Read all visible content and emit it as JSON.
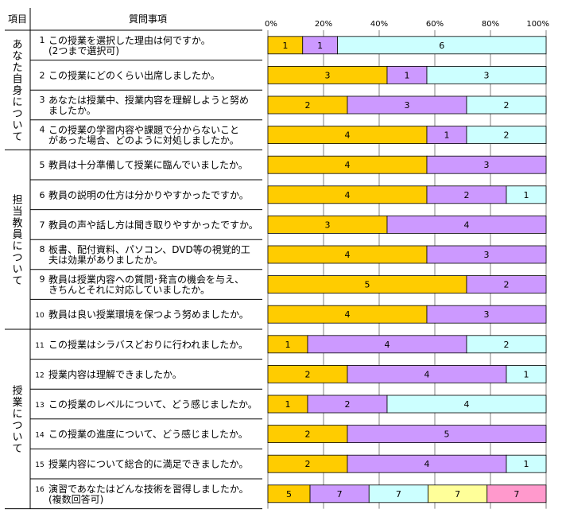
{
  "header": {
    "category": "項目",
    "question": "質問事項"
  },
  "categories": [
    {
      "label": "あなた自身について",
      "first": 0,
      "last": 3
    },
    {
      "label": "担当教員について",
      "first": 4,
      "last": 9
    },
    {
      "label": "授業について",
      "first": 10,
      "last": 15
    }
  ],
  "colors": {
    "s1": "#ffcc00",
    "s2": "#cc99ff",
    "s3": "#ccffff",
    "s4": "#ffff99",
    "s5": "#ff99cc",
    "grid": "#808080",
    "border": "#000000"
  },
  "chart_data": {
    "type": "bar",
    "orientation": "horizontal",
    "stacked": "percent",
    "xticks": [
      "0%",
      "20%",
      "40%",
      "60%",
      "80%",
      "100%"
    ],
    "xlim": [
      0,
      100
    ],
    "questions": [
      {
        "no": "1",
        "lines": [
          "この授業を選択した理由は何ですか。",
          "(2つまで選択可)"
        ],
        "values": [
          1,
          1,
          6
        ]
      },
      {
        "no": "2",
        "lines": [
          "この授業にどのくらい出席しましたか。"
        ],
        "values": [
          3,
          1,
          3
        ]
      },
      {
        "no": "3",
        "lines": [
          "あなたは授業中、授業内容を理解しようと努め",
          "ましたか。"
        ],
        "values": [
          2,
          3,
          2
        ]
      },
      {
        "no": "4",
        "lines": [
          "この授業の学習内容や課題で分からないこと",
          "があった場合、どのように対処しましたか。"
        ],
        "values": [
          4,
          1,
          2
        ]
      },
      {
        "no": "5",
        "lines": [
          "教員は十分準備して授業に臨んでいましたか。"
        ],
        "values": [
          4,
          3
        ]
      },
      {
        "no": "6",
        "lines": [
          "教員の説明の仕方は分かりやすかったですか。"
        ],
        "values": [
          4,
          2,
          1
        ]
      },
      {
        "no": "7",
        "lines": [
          "教員の声や話し方は聞き取りやすかったですか。"
        ],
        "values": [
          3,
          4
        ]
      },
      {
        "no": "8",
        "lines": [
          "板書、配付資料、パソコン、DVD等の視覚的工",
          "夫は効果がありましたか。"
        ],
        "values": [
          4,
          3
        ]
      },
      {
        "no": "9",
        "lines": [
          "教員は授業内容への質問･発言の機会を与え、",
          "きちんとそれに対応していましたか。"
        ],
        "values": [
          5,
          2
        ]
      },
      {
        "no": "10",
        "lines": [
          "教員は良い授業環境を保つよう努めましたか。"
        ],
        "values": [
          4,
          3
        ]
      },
      {
        "no": "11",
        "lines": [
          "この授業はシラバスどおりに行われましたか。"
        ],
        "values": [
          1,
          4,
          2
        ]
      },
      {
        "no": "12",
        "lines": [
          "授業内容は理解できましたか。"
        ],
        "values": [
          2,
          4,
          1
        ]
      },
      {
        "no": "13",
        "lines": [
          "この授業のレベルについて、どう感じましたか。"
        ],
        "values": [
          1,
          2,
          4
        ]
      },
      {
        "no": "14",
        "lines": [
          "この授業の進度について、どう感じましたか。"
        ],
        "values": [
          2,
          5
        ]
      },
      {
        "no": "15",
        "lines": [
          "授業内容について総合的に満足できましたか。"
        ],
        "values": [
          2,
          4,
          1
        ]
      },
      {
        "no": "16",
        "lines": [
          "演習であなたはどんな技術を習得しましたか。",
          "(複数回答可)"
        ],
        "values": [
          5,
          7,
          7,
          7,
          7
        ]
      }
    ]
  }
}
